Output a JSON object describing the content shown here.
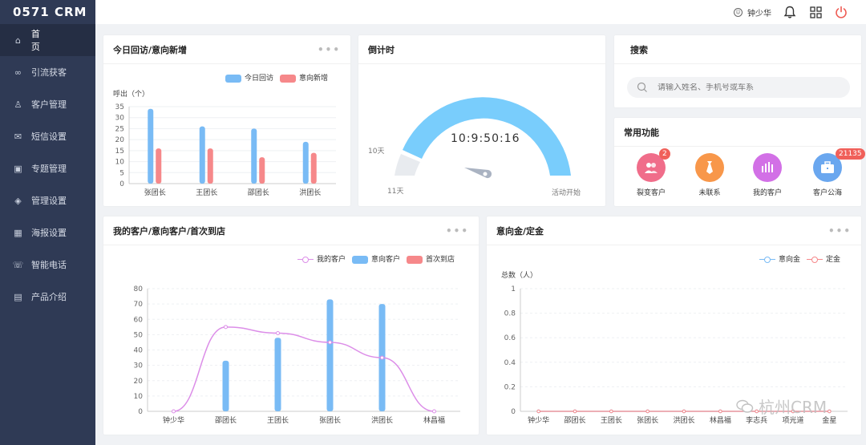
{
  "app": {
    "logo": "0571 CRM"
  },
  "sidebar": {
    "items": [
      {
        "label": "首　页",
        "icon": "home-icon",
        "active": true
      },
      {
        "label": "引流获客",
        "icon": "share-icon"
      },
      {
        "label": "客户管理",
        "icon": "user-icon"
      },
      {
        "label": "短信设置",
        "icon": "mail-icon"
      },
      {
        "label": "专题管理",
        "icon": "topic-icon"
      },
      {
        "label": "管理设置",
        "icon": "layers-icon"
      },
      {
        "label": "海报设置",
        "icon": "image-icon"
      },
      {
        "label": "智能电话",
        "icon": "phone-icon"
      },
      {
        "label": "产品介绍",
        "icon": "book-icon"
      }
    ]
  },
  "header": {
    "username": "钟少华"
  },
  "card_visit": {
    "title": "今日回访/意向新增",
    "menu": "•••",
    "legend": [
      "今日回访",
      "意向新增"
    ],
    "ylabel": "呼出（个）"
  },
  "card_countdown": {
    "title": "倒计时",
    "time": "10:9:50:16",
    "label_10": "10天",
    "label_11": "11天",
    "label_start": "活动开始"
  },
  "card_search": {
    "title": "搜索",
    "placeholder": "请输入姓名、手机号或车系"
  },
  "card_functions": {
    "title": "常用功能",
    "items": [
      {
        "label": "裂变客户",
        "badge": "2",
        "color": "#f06d8a",
        "icon": "users-icon"
      },
      {
        "label": "未联系",
        "badge": "",
        "color": "#f8974a",
        "icon": "tie-icon"
      },
      {
        "label": "我的客户",
        "badge": "",
        "color": "#d270e6",
        "icon": "bars-icon"
      },
      {
        "label": "客户公海",
        "badge": "21135",
        "color": "#6aa7ef",
        "icon": "briefcase-icon"
      }
    ]
  },
  "card_customers": {
    "title": "我的客户/意向客户/首次到店",
    "menu": "•••",
    "legend": [
      "我的客户",
      "意向客户",
      "首次到店"
    ]
  },
  "card_deposit": {
    "title": "意向金/定金",
    "menu": "•••",
    "legend": [
      "意向金",
      "定金"
    ],
    "ylabel": "总数（人）"
  },
  "watermark": "杭州CRM",
  "colors": {
    "blue": "#79bbf5",
    "red": "#f6888a",
    "purple": "#dc8ee8",
    "sidebar": "#2f3a55"
  },
  "chart_data": [
    {
      "type": "bar",
      "title": "今日回访/意向新增",
      "ylabel": "呼出（个）",
      "categories": [
        "张团长",
        "王团长",
        "邵团长",
        "洪团长"
      ],
      "ylim": [
        0,
        35
      ],
      "yticks": [
        0,
        5,
        10,
        15,
        20,
        25,
        30,
        35
      ],
      "series": [
        {
          "name": "今日回访",
          "values": [
            34,
            26,
            25,
            19
          ]
        },
        {
          "name": "意向新增",
          "values": [
            16,
            16,
            12,
            14
          ]
        }
      ]
    },
    {
      "type": "bar",
      "title": "我的客户/意向客户/首次到店",
      "categories": [
        "钟少华",
        "邵团长",
        "王团长",
        "张团长",
        "洪团长",
        "林昌福"
      ],
      "ylim": [
        0,
        80
      ],
      "yticks": [
        0,
        10,
        20,
        30,
        40,
        50,
        60,
        70,
        80
      ],
      "series": [
        {
          "name": "我的客户",
          "type": "line",
          "values": [
            0,
            55,
            51,
            45,
            35,
            0
          ]
        },
        {
          "name": "意向客户",
          "values": [
            0,
            33,
            48,
            73,
            70,
            0
          ]
        },
        {
          "name": "首次到店",
          "values": [
            0,
            0,
            0,
            0,
            0,
            0
          ]
        }
      ]
    },
    {
      "type": "line",
      "title": "意向金/定金",
      "ylabel": "总数（人）",
      "categories": [
        "钟少华",
        "邵团长",
        "王团长",
        "张团长",
        "洪团长",
        "林昌福",
        "李志兵",
        "项光道",
        "金星"
      ],
      "ylim": [
        0,
        1
      ],
      "yticks": [
        0,
        0.2,
        0.4,
        0.6,
        0.8,
        1
      ],
      "series": [
        {
          "name": "意向金",
          "values": [
            0,
            0,
            0,
            0,
            0,
            0,
            0,
            0,
            0
          ]
        },
        {
          "name": "定金",
          "values": [
            0,
            0,
            0,
            0,
            0,
            0,
            0,
            0,
            0
          ]
        }
      ]
    }
  ]
}
